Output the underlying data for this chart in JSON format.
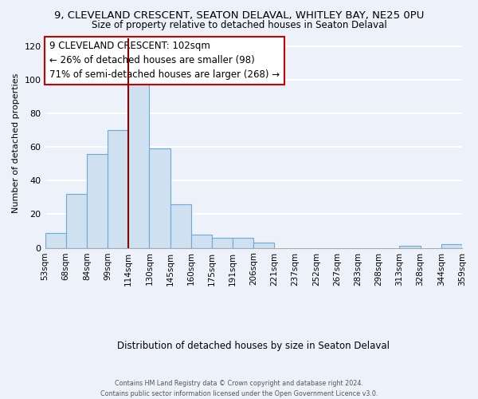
{
  "title": "9, CLEVELAND CRESCENT, SEATON DELAVAL, WHITLEY BAY, NE25 0PU",
  "subtitle": "Size of property relative to detached houses in Seaton Delaval",
  "bar_values": [
    9,
    32,
    56,
    70,
    101,
    59,
    26,
    8,
    6,
    6,
    3,
    0,
    0,
    0,
    0,
    0,
    0,
    1,
    0,
    2
  ],
  "x_labels": [
    "53sqm",
    "68sqm",
    "84sqm",
    "99sqm",
    "114sqm",
    "130sqm",
    "145sqm",
    "160sqm",
    "175sqm",
    "191sqm",
    "206sqm",
    "221sqm",
    "237sqm",
    "252sqm",
    "267sqm",
    "283sqm",
    "298sqm",
    "313sqm",
    "328sqm",
    "344sqm",
    "359sqm"
  ],
  "bar_color": "#cfe0f0",
  "bar_edge_color": "#6aaad4",
  "ylabel": "Number of detached properties",
  "xlabel": "Distribution of detached houses by size in Seaton Delaval",
  "ylim": [
    0,
    125
  ],
  "yticks": [
    0,
    20,
    40,
    60,
    80,
    100,
    120
  ],
  "red_line_x": 3.5,
  "annotation_title": "9 CLEVELAND CRESCENT: 102sqm",
  "annotation_line1": "← 26% of detached houses are smaller (98)",
  "annotation_line2": "71% of semi-detached houses are larger (268) →",
  "footer_line1": "Contains HM Land Registry data © Crown copyright and database right 2024.",
  "footer_line2": "Contains public sector information licensed under the Open Government Licence v3.0.",
  "background_color": "#edf2fa",
  "grid_color": "#ffffff",
  "title_fontsize": 9.5,
  "subtitle_fontsize": 8.5,
  "axis_label_fontsize": 8,
  "tick_fontsize": 7.5
}
